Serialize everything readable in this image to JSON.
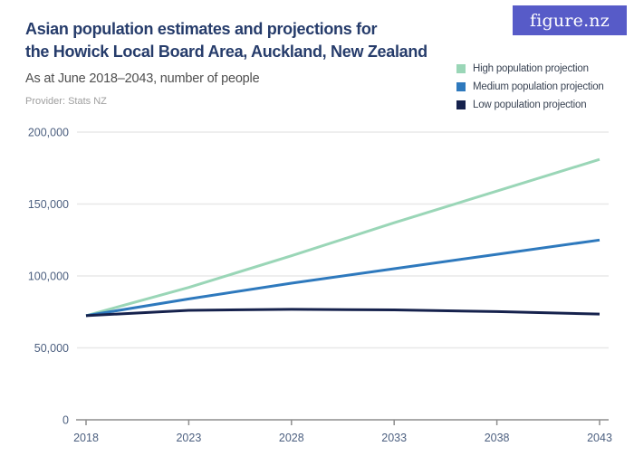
{
  "logo": {
    "text": "figure.nz",
    "bg_color": "#575BC8"
  },
  "header": {
    "title": "Asian population estimates and projections for\nthe Howick Local Board Area, Auckland, New Zealand",
    "subtitle": "As at June 2018–2043, number of people",
    "provider": "Provider: Stats NZ"
  },
  "colors": {
    "grid": "#E8E8E8",
    "axis": "#8E8E8E",
    "axis_label": "#4D6080",
    "high_series": "#9AD6B7",
    "medium_series": "#2E79BD",
    "low_series": "#16224D"
  },
  "chart_data": {
    "type": "line",
    "title": "Asian population estimates and projections for the Howick Local Board Area, Auckland, New Zealand",
    "subtitle": "As at June 2018–2043, number of people",
    "xlabel": "",
    "ylabel": "",
    "x": [
      2018,
      2023,
      2028,
      2033,
      2038,
      2043
    ],
    "xtick_labels": [
      "2018",
      "2023",
      "2028",
      "2033",
      "2038",
      "2043"
    ],
    "ylim": [
      0,
      200000
    ],
    "yticks": [
      0,
      50000,
      100000,
      150000,
      200000
    ],
    "ytick_labels": [
      "0",
      "50,000",
      "100,000",
      "150,000",
      "200,000"
    ],
    "grid": "horizontal",
    "legend_position": "top-right",
    "series": [
      {
        "name": "High population projection",
        "color": "#9AD6B7",
        "values": [
          72400,
          92000,
          114000,
          137000,
          159000,
          181000
        ]
      },
      {
        "name": "Medium population projection",
        "color": "#2E79BD",
        "values": [
          72400,
          84000,
          95000,
          105000,
          115000,
          125000
        ]
      },
      {
        "name": "Low population projection",
        "color": "#16224D",
        "values": [
          72400,
          76100,
          76800,
          76400,
          75200,
          73500
        ]
      }
    ]
  }
}
